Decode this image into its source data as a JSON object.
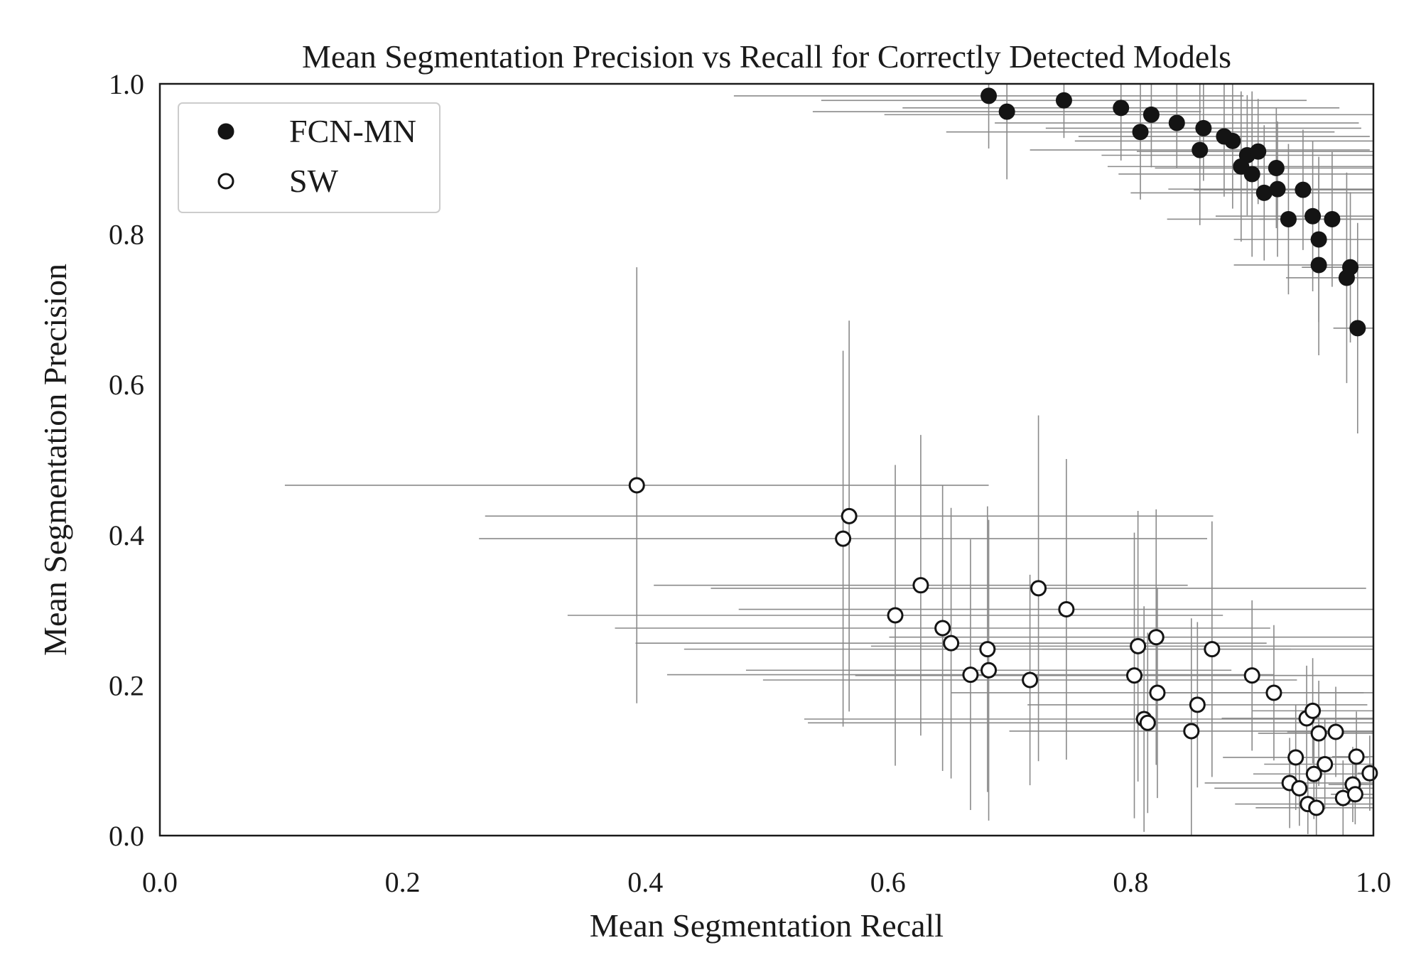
{
  "chart_data": {
    "type": "scatter",
    "title": "Mean Segmentation Precision vs Recall for Correctly Detected Models",
    "xlabel": "Mean Segmentation Recall",
    "ylabel": "Mean Segmentation Precision",
    "xlim": [
      0,
      1
    ],
    "ylim": [
      0,
      1
    ],
    "xticks": [
      "0.0",
      "0.2",
      "0.4",
      "0.6",
      "0.8",
      "1.0"
    ],
    "yticks": [
      "0.0",
      "0.2",
      "0.4",
      "0.6",
      "0.8",
      "1.0"
    ],
    "grid": false,
    "legend_position": "top-left",
    "errorbar_color": "#8a8a8a",
    "series": [
      {
        "name": "FCN-MN",
        "marker": "filled",
        "color": "#141414",
        "points": [
          {
            "x": 0.683,
            "y": 0.984,
            "xerr": 0.21,
            "yerr": 0.07
          },
          {
            "x": 0.698,
            "y": 0.963,
            "xerr": 0.16,
            "yerr": 0.09
          },
          {
            "x": 0.745,
            "y": 0.978,
            "xerr": 0.2,
            "yerr": 0.05
          },
          {
            "x": 0.792,
            "y": 0.968,
            "xerr": 0.18,
            "yerr": 0.07
          },
          {
            "x": 0.808,
            "y": 0.936,
            "xerr": 0.16,
            "yerr": 0.09
          },
          {
            "x": 0.817,
            "y": 0.959,
            "xerr": 0.22,
            "yerr": 0.07
          },
          {
            "x": 0.838,
            "y": 0.948,
            "xerr": 0.15,
            "yerr": 0.06
          },
          {
            "x": 0.857,
            "y": 0.912,
            "xerr": 0.14,
            "yerr": 0.1
          },
          {
            "x": 0.86,
            "y": 0.941,
            "xerr": 0.13,
            "yerr": 0.07
          },
          {
            "x": 0.877,
            "y": 0.93,
            "xerr": 0.12,
            "yerr": 0.08
          },
          {
            "x": 0.884,
            "y": 0.924,
            "xerr": 0.13,
            "yerr": 0.09
          },
          {
            "x": 0.891,
            "y": 0.89,
            "xerr": 0.11,
            "yerr": 0.1
          },
          {
            "x": 0.896,
            "y": 0.905,
            "xerr": 0.12,
            "yerr": 0.08
          },
          {
            "x": 0.9,
            "y": 0.88,
            "xerr": 0.11,
            "yerr": 0.11
          },
          {
            "x": 0.905,
            "y": 0.91,
            "xerr": 0.1,
            "yerr": 0.07
          },
          {
            "x": 0.91,
            "y": 0.855,
            "xerr": 0.11,
            "yerr": 0.09
          },
          {
            "x": 0.92,
            "y": 0.888,
            "xerr": 0.1,
            "yerr": 0.08
          },
          {
            "x": 0.921,
            "y": 0.86,
            "xerr": 0.09,
            "yerr": 0.09
          },
          {
            "x": 0.93,
            "y": 0.82,
            "xerr": 0.1,
            "yerr": 0.1
          },
          {
            "x": 0.942,
            "y": 0.859,
            "xerr": 0.09,
            "yerr": 0.08
          },
          {
            "x": 0.95,
            "y": 0.824,
            "xerr": 0.08,
            "yerr": 0.1
          },
          {
            "x": 0.955,
            "y": 0.793,
            "xerr": 0.07,
            "yerr": 0.11
          },
          {
            "x": 0.955,
            "y": 0.759,
            "xerr": 0.07,
            "yerr": 0.12
          },
          {
            "x": 0.966,
            "y": 0.82,
            "xerr": 0.06,
            "yerr": 0.09
          },
          {
            "x": 0.978,
            "y": 0.742,
            "xerr": 0.05,
            "yerr": 0.14
          },
          {
            "x": 0.981,
            "y": 0.756,
            "xerr": 0.04,
            "yerr": 0.1
          },
          {
            "x": 0.987,
            "y": 0.675,
            "xerr": 0.02,
            "yerr": 0.14
          }
        ]
      },
      {
        "name": "SW",
        "marker": "hollow",
        "color": "#141414",
        "points": [
          {
            "x": 0.393,
            "y": 0.466,
            "xerr": 0.29,
            "yerr": 0.29
          },
          {
            "x": 0.563,
            "y": 0.395,
            "xerr": 0.3,
            "yerr": 0.25
          },
          {
            "x": 0.568,
            "y": 0.425,
            "xerr": 0.3,
            "yerr": 0.26
          },
          {
            "x": 0.606,
            "y": 0.293,
            "xerr": 0.27,
            "yerr": 0.2
          },
          {
            "x": 0.627,
            "y": 0.333,
            "xerr": 0.22,
            "yerr": 0.2
          },
          {
            "x": 0.645,
            "y": 0.276,
            "xerr": 0.27,
            "yerr": 0.19
          },
          {
            "x": 0.652,
            "y": 0.256,
            "xerr": 0.26,
            "yerr": 0.18
          },
          {
            "x": 0.668,
            "y": 0.214,
            "xerr": 0.25,
            "yerr": 0.18
          },
          {
            "x": 0.682,
            "y": 0.248,
            "xerr": 0.25,
            "yerr": 0.19
          },
          {
            "x": 0.683,
            "y": 0.22,
            "xerr": 0.2,
            "yerr": 0.2
          },
          {
            "x": 0.717,
            "y": 0.207,
            "xerr": 0.22,
            "yerr": 0.14
          },
          {
            "x": 0.724,
            "y": 0.329,
            "xerr": 0.27,
            "yerr": 0.23
          },
          {
            "x": 0.747,
            "y": 0.301,
            "xerr": 0.27,
            "yerr": 0.2
          },
          {
            "x": 0.803,
            "y": 0.213,
            "xerr": 0.23,
            "yerr": 0.19
          },
          {
            "x": 0.806,
            "y": 0.252,
            "xerr": 0.22,
            "yerr": 0.18
          },
          {
            "x": 0.811,
            "y": 0.155,
            "xerr": 0.28,
            "yerr": 0.15
          },
          {
            "x": 0.814,
            "y": 0.15,
            "xerr": 0.28,
            "yerr": 0.12
          },
          {
            "x": 0.821,
            "y": 0.264,
            "xerr": 0.22,
            "yerr": 0.17
          },
          {
            "x": 0.822,
            "y": 0.19,
            "xerr": 0.17,
            "yerr": 0.14
          },
          {
            "x": 0.85,
            "y": 0.139,
            "xerr": 0.15,
            "yerr": 0.15
          },
          {
            "x": 0.855,
            "y": 0.174,
            "xerr": 0.14,
            "yerr": 0.11
          },
          {
            "x": 0.867,
            "y": 0.248,
            "xerr": 0.14,
            "yerr": 0.17
          },
          {
            "x": 0.9,
            "y": 0.213,
            "xerr": 0.12,
            "yerr": 0.1
          },
          {
            "x": 0.918,
            "y": 0.19,
            "xerr": 0.1,
            "yerr": 0.09
          },
          {
            "x": 0.931,
            "y": 0.07,
            "xerr": 0.07,
            "yerr": 0.06
          },
          {
            "x": 0.936,
            "y": 0.104,
            "xerr": 0.06,
            "yerr": 0.07
          },
          {
            "x": 0.939,
            "y": 0.063,
            "xerr": 0.07,
            "yerr": 0.05
          },
          {
            "x": 0.945,
            "y": 0.156,
            "xerr": 0.07,
            "yerr": 0.07
          },
          {
            "x": 0.946,
            "y": 0.042,
            "xerr": 0.06,
            "yerr": 0.04
          },
          {
            "x": 0.95,
            "y": 0.166,
            "xerr": 0.05,
            "yerr": 0.07
          },
          {
            "x": 0.951,
            "y": 0.082,
            "xerr": 0.05,
            "yerr": 0.06
          },
          {
            "x": 0.953,
            "y": 0.037,
            "xerr": 0.05,
            "yerr": 0.04
          },
          {
            "x": 0.955,
            "y": 0.136,
            "xerr": 0.05,
            "yerr": 0.07
          },
          {
            "x": 0.96,
            "y": 0.095,
            "xerr": 0.05,
            "yerr": 0.06
          },
          {
            "x": 0.969,
            "y": 0.138,
            "xerr": 0.04,
            "yerr": 0.06
          },
          {
            "x": 0.975,
            "y": 0.05,
            "xerr": 0.03,
            "yerr": 0.05
          },
          {
            "x": 0.983,
            "y": 0.068,
            "xerr": 0.02,
            "yerr": 0.05
          },
          {
            "x": 0.985,
            "y": 0.055,
            "xerr": 0.02,
            "yerr": 0.04
          },
          {
            "x": 0.986,
            "y": 0.105,
            "xerr": 0.02,
            "yerr": 0.06
          },
          {
            "x": 0.997,
            "y": 0.083,
            "xerr": 0.01,
            "yerr": 0.05
          }
        ]
      }
    ]
  }
}
